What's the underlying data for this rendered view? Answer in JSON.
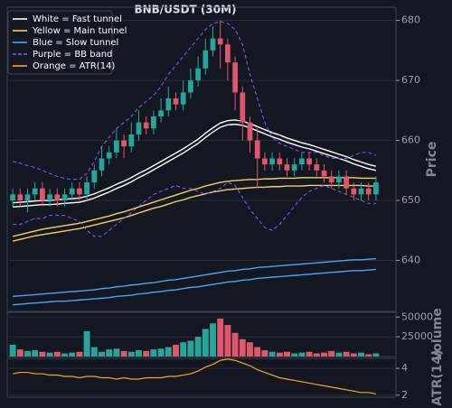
{
  "chart_data": [
    {
      "type": "candlestick",
      "title": "BNB/USDT (30M)",
      "ylabel": "Price",
      "ylim": [
        631.5,
        681
      ],
      "yticks": [
        640,
        650,
        660,
        670,
        680
      ],
      "grid": true,
      "up_color": "#26a69a",
      "down_color": "#e0566a",
      "legend": "upper left",
      "open": [
        650,
        651,
        650,
        651,
        652,
        650,
        651,
        650,
        651,
        652,
        651,
        653,
        655,
        657,
        658,
        660,
        659,
        661,
        663,
        662,
        664,
        665,
        667,
        666,
        668,
        670,
        672,
        675,
        677,
        676,
        673,
        668,
        663,
        660,
        657,
        656,
        657,
        656,
        655,
        656,
        657,
        656,
        655,
        654,
        653,
        654,
        652,
        651,
        652,
        651
      ],
      "high": [
        652,
        652,
        652,
        653,
        653,
        652,
        652,
        652,
        653,
        653,
        654,
        656,
        659,
        659,
        662,
        661,
        663,
        665,
        664,
        665,
        667,
        669,
        668,
        670,
        672,
        674,
        677,
        679,
        680,
        677,
        674,
        669,
        664,
        662,
        658,
        658,
        658,
        657,
        657,
        658,
        658,
        657,
        656,
        655,
        655,
        655,
        653,
        653,
        653,
        654
      ],
      "low": [
        649,
        649,
        648,
        650,
        649,
        649,
        649,
        649,
        650,
        650,
        650,
        652,
        654,
        656,
        657,
        657,
        658,
        660,
        661,
        661,
        663,
        664,
        665,
        665,
        667,
        669,
        671,
        674,
        672,
        670,
        665,
        660,
        658,
        652,
        655,
        655,
        655,
        654,
        654,
        655,
        655,
        654,
        653,
        652,
        652,
        651,
        650,
        650,
        650,
        650
      ],
      "close": [
        651,
        650,
        651,
        652,
        650,
        651,
        650,
        651,
        652,
        651,
        653,
        655,
        657,
        658,
        660,
        659,
        661,
        663,
        662,
        664,
        665,
        667,
        666,
        668,
        670,
        672,
        675,
        677,
        676,
        673,
        668,
        663,
        660,
        657,
        656,
        657,
        656,
        655,
        656,
        657,
        656,
        655,
        654,
        653,
        654,
        652,
        651,
        652,
        651,
        653
      ],
      "series": [
        {
          "name": "White = Fast tunnel",
          "color": "#ffffff",
          "dash": false,
          "upper": [
            649.6,
            649.7,
            649.8,
            649.9,
            650.0,
            650.0,
            650.1,
            650.2,
            650.3,
            650.4,
            650.7,
            651.1,
            651.6,
            652.1,
            652.7,
            653.2,
            653.8,
            654.5,
            655.1,
            655.8,
            656.5,
            657.2,
            657.9,
            658.6,
            659.4,
            660.2,
            661.2,
            662.1,
            662.9,
            663.3,
            663.4,
            663.2,
            662.8,
            662.3,
            661.8,
            661.3,
            660.9,
            660.4,
            660.0,
            659.6,
            659.3,
            658.9,
            658.5,
            658.1,
            657.7,
            657.3,
            656.8,
            656.4,
            656.0,
            655.7
          ],
          "lower": [
            648.9,
            649.0,
            649.1,
            649.2,
            649.3,
            649.3,
            649.4,
            649.5,
            649.6,
            649.7,
            650.0,
            650.4,
            650.9,
            651.4,
            652.0,
            652.5,
            653.1,
            653.8,
            654.4,
            655.1,
            655.8,
            656.5,
            657.2,
            657.9,
            658.7,
            659.5,
            660.5,
            661.4,
            662.2,
            662.6,
            662.7,
            662.5,
            662.1,
            661.6,
            661.1,
            660.6,
            660.2,
            659.7,
            659.3,
            658.9,
            658.6,
            658.2,
            657.8,
            657.4,
            657.0,
            656.6,
            656.1,
            655.7,
            655.3,
            655.0
          ]
        },
        {
          "name": "Yellow = Main tunnel",
          "color": "#f5d060",
          "dash": false,
          "upper": [
            644.0,
            644.3,
            644.6,
            644.9,
            645.2,
            645.4,
            645.6,
            645.8,
            646.0,
            646.2,
            646.5,
            646.8,
            647.1,
            647.4,
            647.8,
            648.1,
            648.5,
            648.9,
            649.3,
            649.7,
            650.1,
            650.5,
            650.9,
            651.3,
            651.7,
            652.0,
            652.4,
            652.7,
            653.0,
            653.2,
            653.3,
            653.4,
            653.5,
            653.5,
            653.6,
            653.6,
            653.7,
            653.7,
            653.7,
            653.8,
            653.8,
            653.8,
            653.8,
            653.8,
            653.8,
            653.8,
            653.8,
            653.7,
            653.7,
            653.7
          ],
          "lower": [
            643.2,
            643.5,
            643.8,
            644.1,
            644.3,
            644.5,
            644.7,
            644.9,
            645.1,
            645.3,
            645.6,
            645.9,
            646.2,
            646.5,
            646.8,
            647.1,
            647.5,
            647.9,
            648.3,
            648.7,
            649.0,
            649.4,
            649.8,
            650.1,
            650.5,
            650.8,
            651.1,
            651.4,
            651.6,
            651.8,
            651.9,
            652.0,
            652.1,
            652.2,
            652.2,
            652.3,
            652.3,
            652.4,
            652.4,
            652.4,
            652.5,
            652.5,
            652.5,
            652.5,
            652.5,
            652.5,
            652.5,
            652.5,
            652.4,
            652.4
          ]
        },
        {
          "name": "Blue = Slow tunnel",
          "color": "#4da3f0",
          "dash": false,
          "upper": [
            634.0,
            634.1,
            634.2,
            634.3,
            634.4,
            634.5,
            634.6,
            634.7,
            634.8,
            634.9,
            635.0,
            635.1,
            635.3,
            635.4,
            635.6,
            635.7,
            635.9,
            636.0,
            636.2,
            636.3,
            636.5,
            636.7,
            636.8,
            637.0,
            637.2,
            637.4,
            637.6,
            637.8,
            638.0,
            638.2,
            638.3,
            638.5,
            638.6,
            638.8,
            638.9,
            639.0,
            639.1,
            639.2,
            639.3,
            639.4,
            639.5,
            639.6,
            639.7,
            639.8,
            639.9,
            640.0,
            640.1,
            640.1,
            640.2,
            640.3
          ],
          "lower": [
            632.6,
            632.7,
            632.8,
            632.9,
            633.0,
            633.1,
            633.2,
            633.2,
            633.3,
            633.4,
            633.5,
            633.6,
            633.7,
            633.8,
            634.0,
            634.1,
            634.2,
            634.4,
            634.5,
            634.7,
            634.8,
            635.0,
            635.1,
            635.3,
            635.5,
            635.6,
            635.8,
            636.0,
            636.2,
            636.4,
            636.5,
            636.7,
            636.8,
            637.0,
            637.1,
            637.2,
            637.3,
            637.4,
            637.5,
            637.6,
            637.7,
            637.8,
            637.9,
            638.0,
            638.1,
            638.2,
            638.3,
            638.3,
            638.4,
            638.5
          ]
        },
        {
          "name": "Purple = BB band",
          "color": "#8a5cf0",
          "dash": true,
          "upper": [
            656.5,
            656.2,
            655.8,
            655.5,
            655.0,
            654.5,
            654.0,
            653.7,
            653.5,
            653.5,
            654.5,
            656.5,
            659.0,
            660.5,
            662.0,
            663.0,
            664.0,
            665.5,
            666.5,
            667.5,
            669.0,
            671.0,
            672.5,
            674.0,
            675.5,
            677.0,
            678.5,
            679.5,
            679.8,
            679.5,
            678.5,
            676.0,
            671.0,
            667.0,
            663.0,
            660.5,
            659.5,
            659.0,
            658.5,
            658.0,
            658.0,
            658.0,
            657.5,
            657.0,
            657.0,
            657.0,
            657.5,
            658.0,
            658.0,
            657.5
          ],
          "lower": [
            646.0,
            646.0,
            646.5,
            647.0,
            647.0,
            647.5,
            647.5,
            647.5,
            647.0,
            646.5,
            645.0,
            644.0,
            644.0,
            645.0,
            646.0,
            647.0,
            648.0,
            649.0,
            650.0,
            651.0,
            651.5,
            652.0,
            652.5,
            652.0,
            652.0,
            651.5,
            651.0,
            651.5,
            652.0,
            653.0,
            652.5,
            650.5,
            648.5,
            647.0,
            645.5,
            645.0,
            646.0,
            647.5,
            649.0,
            650.5,
            651.5,
            652.0,
            652.5,
            652.0,
            651.5,
            651.0,
            650.5,
            650.0,
            649.5,
            649.5
          ]
        }
      ]
    },
    {
      "type": "bar",
      "ylabel": "Volume",
      "ylim": [
        0,
        56000
      ],
      "yticks": [
        25000,
        50000
      ],
      "grid": true,
      "values": [
        15000,
        9000,
        7000,
        8000,
        6000,
        5000,
        6000,
        4000,
        5000,
        6000,
        32000,
        12000,
        6000,
        9000,
        10000,
        7000,
        6000,
        8000,
        7000,
        9000,
        10000,
        12000,
        15000,
        18000,
        20000,
        25000,
        35000,
        42000,
        48000,
        40000,
        30000,
        22000,
        18000,
        12000,
        8000,
        6000,
        5000,
        6000,
        4000,
        5000,
        6000,
        4000,
        5000,
        7000,
        5000,
        6000,
        4000,
        5000,
        3000,
        4000
      ]
    },
    {
      "type": "line",
      "ylabel": "ATR(14)",
      "ylim": [
        1.85,
        4.75
      ],
      "yticks": [
        2,
        4
      ],
      "grid": true,
      "series": [
        {
          "name": "Orange = ATR(14)",
          "color": "#f5a623",
          "values": [
            3.6,
            3.7,
            3.7,
            3.6,
            3.6,
            3.5,
            3.5,
            3.4,
            3.4,
            3.3,
            3.4,
            3.4,
            3.3,
            3.3,
            3.2,
            3.3,
            3.2,
            3.2,
            3.3,
            3.3,
            3.3,
            3.4,
            3.4,
            3.5,
            3.6,
            3.8,
            4.1,
            4.3,
            4.6,
            4.7,
            4.6,
            4.4,
            4.2,
            3.9,
            3.7,
            3.5,
            3.3,
            3.2,
            3.1,
            3.0,
            2.9,
            2.8,
            2.7,
            2.6,
            2.5,
            2.4,
            2.3,
            2.2,
            2.2,
            2.1
          ]
        }
      ]
    }
  ]
}
